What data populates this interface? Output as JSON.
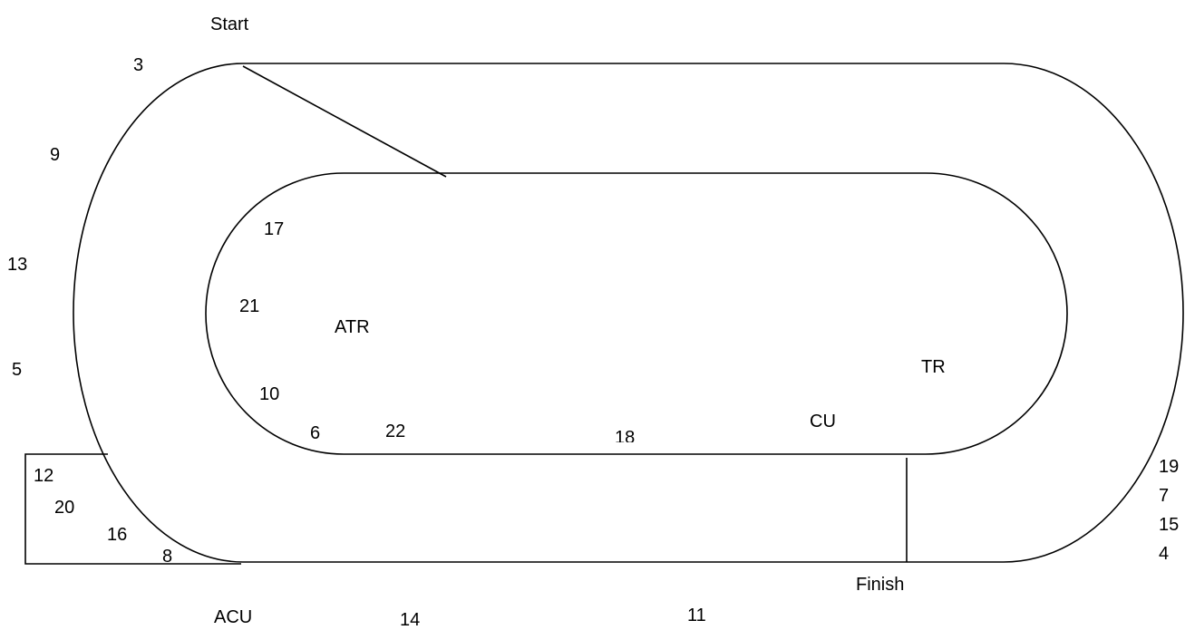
{
  "diagram": {
    "stroke_color": "#000000",
    "background": "#ffffff",
    "labels": {
      "start": "Start",
      "finish": "Finish",
      "atr": "ATR",
      "tr": "TR",
      "cu": "CU",
      "acu": "ACU"
    },
    "numbers": {
      "n3": "3",
      "n9": "9",
      "n13": "13",
      "n5": "5",
      "n12": "12",
      "n20": "20",
      "n16": "16",
      "n8": "8",
      "n17": "17",
      "n21": "21",
      "n10": "10",
      "n6": "6",
      "n22": "22",
      "n18": "18",
      "n19": "19",
      "n7": "7",
      "n15": "15",
      "n4": "4",
      "n14": "14",
      "n11": "11"
    }
  }
}
